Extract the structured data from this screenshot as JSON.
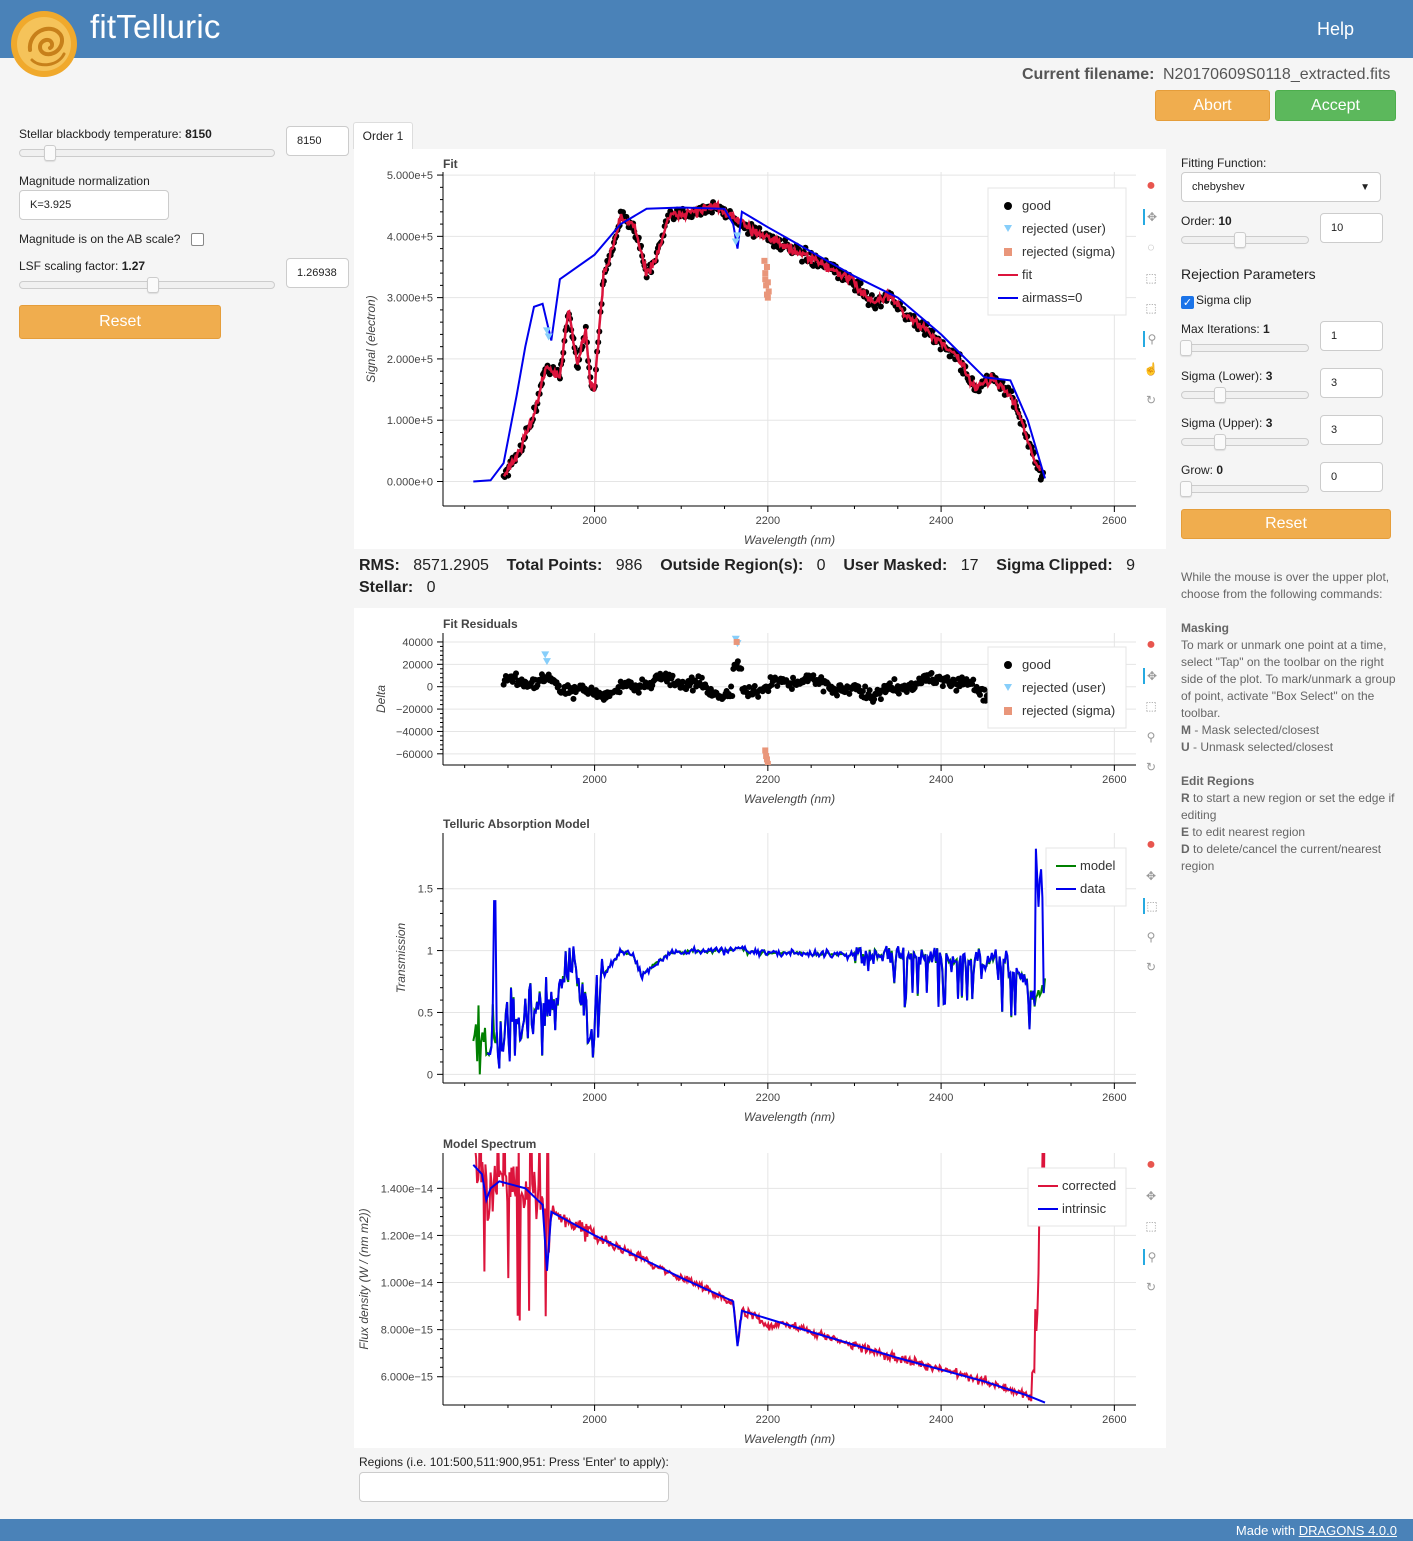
{
  "header": {
    "title": "fitTelluric",
    "help": "Help"
  },
  "file": {
    "label": "Current filename:",
    "value": "N20170609S0118_extracted.fits"
  },
  "actions": {
    "abort": "Abort",
    "accept": "Accept"
  },
  "left": {
    "temp_label": "Stellar blackbody temperature:",
    "temp_value": "8150",
    "temp_input": "8150",
    "temp_level": 0.1,
    "mag_label": "Magnitude normalization",
    "mag_input": "K=3.925",
    "ab_label": "Magnitude is on the AB scale?",
    "lsf_label": "LSF scaling factor:",
    "lsf_value": "1.27",
    "lsf_input": "1.26938",
    "lsf_level": 0.52,
    "reset": "Reset"
  },
  "tab": "Order 1",
  "stats": {
    "rms_label": "RMS:",
    "rms": "8571.2905",
    "total_label": "Total Points:",
    "total": "986",
    "outside_label": "Outside Region(s):",
    "outside": "0",
    "masked_label": "User Masked:",
    "masked": "17",
    "clipped_label": "Sigma Clipped:",
    "clipped": "9",
    "stellar_label": "Stellar:",
    "stellar": "0"
  },
  "regions": {
    "label": "Regions (i.e. 101:500,511:900,951: Press 'Enter' to apply):",
    "value": ""
  },
  "right": {
    "fitting_label": "Fitting Function:",
    "fitting_value": "chebyshev",
    "order_label": "Order:",
    "order_value": "10",
    "order_input": "10",
    "order_level": 0.45,
    "rejection_title": "Rejection Parameters",
    "sigma_clip": "Sigma clip",
    "maxiter_label": "Max Iterations:",
    "maxiter_value": "1",
    "maxiter_input": "1",
    "siglow_label": "Sigma (Lower):",
    "siglow_value": "3",
    "siglow_input": "3",
    "sigup_label": "Sigma (Upper):",
    "sigup_value": "3",
    "sigup_input": "3",
    "grow_label": "Grow:",
    "grow_value": "0",
    "grow_input": "0",
    "reset": "Reset",
    "help_intro": "While the mouse is over the upper plot, choose from the following commands:",
    "masking_title": "Masking",
    "masking_text": "To mark or unmark one point at a time, select \"Tap\" on the toolbar on the right side of the plot. To mark/unmark a group of point, activate \"Box Select\" on the toolbar.",
    "m_key": "M",
    "m_text": " - Mask selected/closest",
    "u_key": "U",
    "u_text": " - Unmask selected/closest",
    "regions_title": "Edit Regions",
    "r_key": "R",
    "r_text": " to start a new region or set the edge if editing",
    "e_key": "E",
    "e_text": " to edit nearest region",
    "d_key": "D",
    "d_text": " to delete/cancel the current/nearest region"
  },
  "footer": {
    "text": "Made with ",
    "link": "DRAGONS 4.0.0"
  },
  "colors": {
    "header": "#4a82b8",
    "orange": "#f0ad4e",
    "green": "#5cb85c",
    "fit": "#dc143c",
    "blue": "#0000ee",
    "model": "#008000",
    "user": "#87cefa",
    "sigma": "#e9967a"
  },
  "chart_data": [
    {
      "type": "scatter",
      "title": "Fit",
      "xlabel": "Wavelength (nm)",
      "ylabel": "Signal (electron)",
      "xlim": [
        1825,
        2625
      ],
      "ylim": [
        -40000,
        505000
      ],
      "xticks": [
        2000,
        2200,
        2400,
        2600
      ],
      "xtick_labels": [
        "2000",
        "2200",
        "2400",
        "2600"
      ],
      "yticks": [
        0,
        100000,
        200000,
        300000,
        400000,
        500000
      ],
      "ytick_labels": [
        "0.000e+0",
        "1.000e+5",
        "2.000e+5",
        "3.000e+5",
        "4.000e+5",
        "5.000e+5"
      ],
      "legend": [
        "good",
        "rejected (user)",
        "rejected (sigma)",
        "fit",
        "airmass=0"
      ],
      "legend_position": "top-right",
      "airmass0": [
        [
          1860,
          0
        ],
        [
          1880,
          2000
        ],
        [
          1895,
          30000
        ],
        [
          1910,
          140000
        ],
        [
          1920,
          220000
        ],
        [
          1930,
          285000
        ],
        [
          1940,
          290000
        ],
        [
          1950,
          230000
        ],
        [
          1960,
          330000
        ],
        [
          2000,
          370000
        ],
        [
          2030,
          420000
        ],
        [
          2060,
          445000
        ],
        [
          2100,
          447000
        ],
        [
          2150,
          445000
        ],
        [
          2160,
          420000
        ],
        [
          2165,
          380000
        ],
        [
          2170,
          440000
        ],
        [
          2200,
          415000
        ],
        [
          2300,
          335000
        ],
        [
          2350,
          300000
        ],
        [
          2400,
          240000
        ],
        [
          2450,
          170000
        ],
        [
          2480,
          165000
        ],
        [
          2500,
          100000
        ],
        [
          2520,
          5000
        ]
      ],
      "fit_curve": [
        [
          1895,
          10000
        ],
        [
          1910,
          40000
        ],
        [
          1930,
          110000
        ],
        [
          1945,
          190000
        ],
        [
          1960,
          170000
        ],
        [
          1970,
          280000
        ],
        [
          1980,
          190000
        ],
        [
          1990,
          250000
        ],
        [
          1995,
          160000
        ],
        [
          2000,
          150000
        ],
        [
          2010,
          330000
        ],
        [
          2030,
          430000
        ],
        [
          2045,
          420000
        ],
        [
          2060,
          340000
        ],
        [
          2070,
          360000
        ],
        [
          2085,
          430000
        ],
        [
          2110,
          440000
        ],
        [
          2140,
          448000
        ],
        [
          2160,
          430000
        ],
        [
          2175,
          415000
        ],
        [
          2200,
          400000
        ],
        [
          2230,
          375000
        ],
        [
          2270,
          350000
        ],
        [
          2300,
          325000
        ],
        [
          2320,
          290000
        ],
        [
          2340,
          305000
        ],
        [
          2360,
          270000
        ],
        [
          2380,
          250000
        ],
        [
          2400,
          225000
        ],
        [
          2420,
          200000
        ],
        [
          2440,
          150000
        ],
        [
          2460,
          170000
        ],
        [
          2480,
          140000
        ],
        [
          2490,
          110000
        ],
        [
          2500,
          70000
        ],
        [
          2515,
          10000
        ]
      ],
      "user_rejected": [
        [
          1945,
          245000
        ],
        [
          1947,
          235000
        ],
        [
          2163,
          390000
        ],
        [
          2165,
          400000
        ]
      ],
      "sigma_rejected": [
        [
          2196,
          360000
        ],
        [
          2197,
          340000
        ],
        [
          2198,
          320000
        ],
        [
          2199,
          305000
        ],
        [
          2200,
          300000
        ],
        [
          2201,
          310000
        ],
        [
          2197,
          330000
        ],
        [
          2199,
          350000
        ],
        [
          2200,
          325000
        ]
      ]
    },
    {
      "type": "scatter",
      "title": "Fit Residuals",
      "xlabel": "Wavelength (nm)",
      "ylabel": "Delta",
      "xlim": [
        1825,
        2625
      ],
      "ylim": [
        -70000,
        48000
      ],
      "xticks": [
        2000,
        2200,
        2400,
        2600
      ],
      "xtick_labels": [
        "2000",
        "2200",
        "2400",
        "2600"
      ],
      "yticks": [
        -60000,
        -40000,
        -20000,
        0,
        20000,
        40000
      ],
      "ytick_labels": [
        "−60000",
        "−40000",
        "−20000",
        "0",
        "20000",
        "40000"
      ],
      "legend": [
        "good",
        "rejected (user)",
        "rejected (sigma)"
      ],
      "legend_position": "top-right",
      "user_rejected": [
        [
          1943,
          28000
        ],
        [
          1945,
          22000
        ],
        [
          2163,
          42000
        ],
        [
          2165,
          38000
        ]
      ],
      "sigma_rejected": [
        [
          2197,
          -57000
        ],
        [
          2198,
          -62000
        ],
        [
          2199,
          -65000
        ],
        [
          2200,
          -69000
        ],
        [
          2164,
          40000
        ]
      ]
    },
    {
      "type": "line",
      "title": "Telluric Absorption Model",
      "xlabel": "Wavelength (nm)",
      "ylabel": "Transmission",
      "xlim": [
        1825,
        2625
      ],
      "ylim": [
        -0.07,
        1.95
      ],
      "xticks": [
        2000,
        2200,
        2400,
        2600
      ],
      "xtick_labels": [
        "2000",
        "2200",
        "2400",
        "2600"
      ],
      "yticks": [
        0,
        0.5,
        1,
        1.5
      ],
      "ytick_labels": [
        "0",
        "0.5",
        "1",
        "1.5"
      ],
      "legend": [
        "model",
        "data"
      ],
      "legend_position": "top-right"
    },
    {
      "type": "line",
      "title": "Model Spectrum",
      "xlabel": "Wavelength (nm)",
      "ylabel": "Flux density (W / (nm m2))",
      "xlim": [
        1825,
        2625
      ],
      "ylim": [
        4.8e-15,
        1.55e-14
      ],
      "xticks": [
        2000,
        2200,
        2400,
        2600
      ],
      "xtick_labels": [
        "2000",
        "2200",
        "2400",
        "2600"
      ],
      "yticks": [
        6e-15,
        8e-15,
        1e-14,
        1.2e-14,
        1.4e-14
      ],
      "ytick_labels": [
        "6.000e−15",
        "8.000e−15",
        "1.000e−14",
        "1.200e−14",
        "1.400e−14"
      ],
      "legend": [
        "corrected",
        "intrinsic"
      ],
      "legend_position": "top-right",
      "intrinsic": [
        [
          1860,
          1.5e-14
        ],
        [
          1870,
          1.46e-14
        ],
        [
          1875,
          1.35e-14
        ],
        [
          1880,
          1.4e-14
        ],
        [
          1890,
          1.43e-14
        ],
        [
          1920,
          1.4e-14
        ],
        [
          1940,
          1.33e-14
        ],
        [
          1945,
          1.05e-14
        ],
        [
          1950,
          1.3e-14
        ],
        [
          2000,
          1.2e-14
        ],
        [
          2100,
          1.02e-14
        ],
        [
          2160,
          9.2e-15
        ],
        [
          2165,
          7.3e-15
        ],
        [
          2170,
          8.8e-15
        ],
        [
          2250,
          7.9e-15
        ],
        [
          2350,
          6.8e-15
        ],
        [
          2450,
          5.8e-15
        ],
        [
          2500,
          5.2e-15
        ],
        [
          2520,
          4.9e-15
        ]
      ]
    }
  ]
}
